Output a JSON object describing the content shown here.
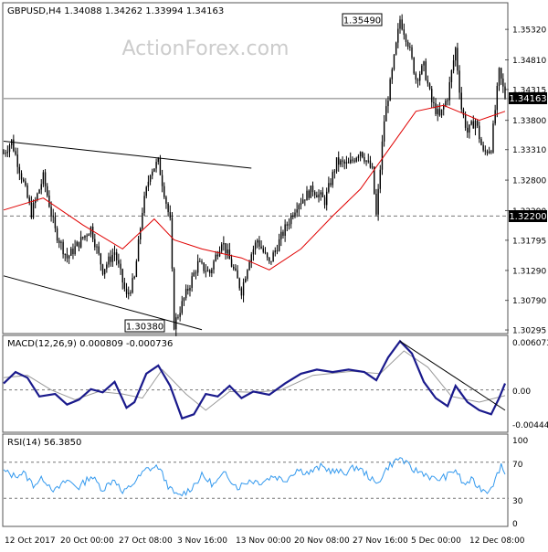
{
  "colors": {
    "candle": "#000000",
    "ma": "#e00000",
    "macd": "#1a1a8c",
    "signal": "#9a9a9a",
    "rsi": "#3399ee",
    "grid": "#777777",
    "watermark": "#cccccc"
  },
  "watermark": "ActionForex.com",
  "main": {
    "header": "GBPUSD,H4  1.34088  1.34262  1.33994  1.34163",
    "price_ticks": [
      "1.35320",
      "1.34810",
      "1.34315",
      "1.33800",
      "1.33310",
      "1.32800",
      "1.32290",
      "1.31795",
      "1.31290",
      "1.30790",
      "1.30295"
    ],
    "current_price_label": "1.34163",
    "current_price": 1.34163,
    "level_label": "1.32200",
    "level_price": 1.322,
    "high_label": "1.35490",
    "low_label": "1.30380",
    "ylim": [
      1.3025,
      1.3575
    ]
  },
  "macd": {
    "header": "MACD(12,26,9) 0.000809 -0.000736",
    "ticks": [
      "0.006073",
      "0.00",
      "-0.004441"
    ],
    "ylim": [
      -0.0051,
      0.0066
    ]
  },
  "rsi": {
    "header": "RSI(14) 56.3850",
    "ticks": [
      "100",
      "70",
      "30",
      "0"
    ],
    "levels": [
      70,
      30
    ],
    "ylim": [
      0,
      100
    ]
  },
  "x_labels": [
    "12 Oct 2017",
    "20 Oct 00:00",
    "27 Oct 08:00",
    "3 Nov 16:00",
    "13 Nov 00:00",
    "20 Nov 08:00",
    "27 Nov 16:00",
    "5 Dec 00:00",
    "12 Dec 08:00"
  ],
  "chart_data": {
    "type": "candlestick",
    "symbol": "GBPUSD",
    "timeframe": "H4",
    "ohlc_last": {
      "open": 1.34088,
      "high": 1.34262,
      "low": 1.33994,
      "close": 1.34163
    },
    "trend_path": [
      {
        "t": 0,
        "price": 1.3325
      },
      {
        "t": 4,
        "price": 1.3345
      },
      {
        "t": 10,
        "price": 1.3275
      },
      {
        "t": 14,
        "price": 1.3225
      },
      {
        "t": 20,
        "price": 1.3285
      },
      {
        "t": 26,
        "price": 1.3195
      },
      {
        "t": 32,
        "price": 1.315
      },
      {
        "t": 38,
        "price": 1.3175
      },
      {
        "t": 44,
        "price": 1.32
      },
      {
        "t": 50,
        "price": 1.313
      },
      {
        "t": 56,
        "price": 1.316
      },
      {
        "t": 62,
        "price": 1.3085
      },
      {
        "t": 66,
        "price": 1.3115
      },
      {
        "t": 70,
        "price": 1.323
      },
      {
        "t": 74,
        "price": 1.3295
      },
      {
        "t": 78,
        "price": 1.331
      },
      {
        "t": 84,
        "price": 1.321
      },
      {
        "t": 86,
        "price": 1.3038
      },
      {
        "t": 92,
        "price": 1.309
      },
      {
        "t": 98,
        "price": 1.314
      },
      {
        "t": 104,
        "price": 1.3125
      },
      {
        "t": 110,
        "price": 1.318
      },
      {
        "t": 116,
        "price": 1.313
      },
      {
        "t": 120,
        "price": 1.3095
      },
      {
        "t": 124,
        "price": 1.315
      },
      {
        "t": 128,
        "price": 1.318
      },
      {
        "t": 134,
        "price": 1.314
      },
      {
        "t": 140,
        "price": 1.3185
      },
      {
        "t": 148,
        "price": 1.324
      },
      {
        "t": 156,
        "price": 1.3265
      },
      {
        "t": 162,
        "price": 1.3245
      },
      {
        "t": 168,
        "price": 1.331
      },
      {
        "t": 174,
        "price": 1.3305
      },
      {
        "t": 180,
        "price": 1.333
      },
      {
        "t": 186,
        "price": 1.3295
      },
      {
        "t": 188,
        "price": 1.322
      },
      {
        "t": 192,
        "price": 1.338
      },
      {
        "t": 196,
        "price": 1.346
      },
      {
        "t": 200,
        "price": 1.3549
      },
      {
        "t": 204,
        "price": 1.351
      },
      {
        "t": 208,
        "price": 1.345
      },
      {
        "t": 212,
        "price": 1.347
      },
      {
        "t": 216,
        "price": 1.341
      },
      {
        "t": 220,
        "price": 1.3385
      },
      {
        "t": 224,
        "price": 1.342
      },
      {
        "t": 228,
        "price": 1.35
      },
      {
        "t": 231,
        "price": 1.34
      },
      {
        "t": 234,
        "price": 1.336
      },
      {
        "t": 238,
        "price": 1.338
      },
      {
        "t": 242,
        "price": 1.3325
      },
      {
        "t": 246,
        "price": 1.3335
      },
      {
        "t": 250,
        "price": 1.346
      },
      {
        "t": 253,
        "price": 1.342
      }
    ],
    "moving_average": [
      {
        "t": 0,
        "price": 1.323
      },
      {
        "t": 20,
        "price": 1.325
      },
      {
        "t": 40,
        "price": 1.3205
      },
      {
        "t": 60,
        "price": 1.3165
      },
      {
        "t": 76,
        "price": 1.3215
      },
      {
        "t": 86,
        "price": 1.318
      },
      {
        "t": 100,
        "price": 1.3165
      },
      {
        "t": 120,
        "price": 1.315
      },
      {
        "t": 134,
        "price": 1.313
      },
      {
        "t": 150,
        "price": 1.3165
      },
      {
        "t": 166,
        "price": 1.322
      },
      {
        "t": 180,
        "price": 1.3265
      },
      {
        "t": 194,
        "price": 1.333
      },
      {
        "t": 208,
        "price": 1.3395
      },
      {
        "t": 222,
        "price": 1.3405
      },
      {
        "t": 240,
        "price": 1.338
      },
      {
        "t": 253,
        "price": 1.3395
      }
    ],
    "upper_channel": [
      {
        "t": 0,
        "price": 1.3345
      },
      {
        "t": 125,
        "price": 1.33
      }
    ],
    "lower_channel": [
      {
        "t": 0,
        "price": 1.312
      },
      {
        "t": 100,
        "price": 1.303
      }
    ],
    "macd_main": [
      {
        "t": 0,
        "v": 0.0008
      },
      {
        "t": 6,
        "v": 0.0022
      },
      {
        "t": 12,
        "v": 0.0015
      },
      {
        "t": 18,
        "v": -0.0008
      },
      {
        "t": 26,
        "v": -0.0005
      },
      {
        "t": 32,
        "v": -0.0018
      },
      {
        "t": 38,
        "v": -0.0012
      },
      {
        "t": 44,
        "v": 0.0001
      },
      {
        "t": 50,
        "v": -0.0003
      },
      {
        "t": 56,
        "v": 0.001
      },
      {
        "t": 62,
        "v": -0.0022
      },
      {
        "t": 66,
        "v": -0.0015
      },
      {
        "t": 72,
        "v": 0.002
      },
      {
        "t": 78,
        "v": 0.003
      },
      {
        "t": 84,
        "v": 0.0005
      },
      {
        "t": 90,
        "v": -0.0035
      },
      {
        "t": 96,
        "v": -0.003
      },
      {
        "t": 102,
        "v": -0.0005
      },
      {
        "t": 108,
        "v": -0.0008
      },
      {
        "t": 114,
        "v": 0.0005
      },
      {
        "t": 120,
        "v": -0.001
      },
      {
        "t": 126,
        "v": -0.0002
      },
      {
        "t": 134,
        "v": -0.0006
      },
      {
        "t": 142,
        "v": 0.0008
      },
      {
        "t": 150,
        "v": 0.002
      },
      {
        "t": 158,
        "v": 0.0025
      },
      {
        "t": 166,
        "v": 0.0022
      },
      {
        "t": 174,
        "v": 0.0025
      },
      {
        "t": 182,
        "v": 0.0022
      },
      {
        "t": 188,
        "v": 0.0012
      },
      {
        "t": 194,
        "v": 0.004
      },
      {
        "t": 200,
        "v": 0.006
      },
      {
        "t": 206,
        "v": 0.0045
      },
      {
        "t": 212,
        "v": 0.001
      },
      {
        "t": 218,
        "v": -0.001
      },
      {
        "t": 224,
        "v": -0.002
      },
      {
        "t": 228,
        "v": 0.0005
      },
      {
        "t": 234,
        "v": -0.0015
      },
      {
        "t": 240,
        "v": -0.0025
      },
      {
        "t": 246,
        "v": -0.003
      },
      {
        "t": 250,
        "v": -0.001
      },
      {
        "t": 253,
        "v": 0.0008
      }
    ],
    "macd_signal": [
      {
        "t": 0,
        "v": 0.0015
      },
      {
        "t": 12,
        "v": 0.0018
      },
      {
        "t": 24,
        "v": 0.0
      },
      {
        "t": 36,
        "v": -0.0012
      },
      {
        "t": 48,
        "v": -0.0002
      },
      {
        "t": 60,
        "v": -0.0005
      },
      {
        "t": 70,
        "v": -0.001
      },
      {
        "t": 80,
        "v": 0.0025
      },
      {
        "t": 92,
        "v": -0.0005
      },
      {
        "t": 102,
        "v": -0.0025
      },
      {
        "t": 114,
        "v": -0.0002
      },
      {
        "t": 126,
        "v": -0.0003
      },
      {
        "t": 140,
        "v": 0.0
      },
      {
        "t": 156,
        "v": 0.0018
      },
      {
        "t": 176,
        "v": 0.0023
      },
      {
        "t": 190,
        "v": 0.002
      },
      {
        "t": 202,
        "v": 0.0048
      },
      {
        "t": 214,
        "v": 0.0028
      },
      {
        "t": 226,
        "v": -0.0008
      },
      {
        "t": 240,
        "v": -0.0015
      },
      {
        "t": 253,
        "v": -0.0007
      }
    ],
    "macd_trendline": [
      {
        "t": 200,
        "v": 0.006
      },
      {
        "t": 253,
        "v": -0.0025
      }
    ],
    "rsi_values": [
      {
        "t": 0,
        "v": 60
      },
      {
        "t": 5,
        "v": 55
      },
      {
        "t": 10,
        "v": 58
      },
      {
        "t": 15,
        "v": 45
      },
      {
        "t": 20,
        "v": 52
      },
      {
        "t": 26,
        "v": 38
      },
      {
        "t": 32,
        "v": 50
      },
      {
        "t": 38,
        "v": 42
      },
      {
        "t": 44,
        "v": 55
      },
      {
        "t": 50,
        "v": 40
      },
      {
        "t": 56,
        "v": 52
      },
      {
        "t": 60,
        "v": 35
      },
      {
        "t": 66,
        "v": 48
      },
      {
        "t": 72,
        "v": 62
      },
      {
        "t": 78,
        "v": 65
      },
      {
        "t": 84,
        "v": 40
      },
      {
        "t": 88,
        "v": 32
      },
      {
        "t": 94,
        "v": 40
      },
      {
        "t": 100,
        "v": 55
      },
      {
        "t": 106,
        "v": 45
      },
      {
        "t": 112,
        "v": 58
      },
      {
        "t": 118,
        "v": 42
      },
      {
        "t": 124,
        "v": 50
      },
      {
        "t": 130,
        "v": 48
      },
      {
        "t": 136,
        "v": 55
      },
      {
        "t": 142,
        "v": 50
      },
      {
        "t": 148,
        "v": 62
      },
      {
        "t": 154,
        "v": 58
      },
      {
        "t": 160,
        "v": 65
      },
      {
        "t": 166,
        "v": 60
      },
      {
        "t": 172,
        "v": 58
      },
      {
        "t": 178,
        "v": 65
      },
      {
        "t": 184,
        "v": 55
      },
      {
        "t": 188,
        "v": 45
      },
      {
        "t": 194,
        "v": 65
      },
      {
        "t": 200,
        "v": 75
      },
      {
        "t": 206,
        "v": 62
      },
      {
        "t": 212,
        "v": 58
      },
      {
        "t": 218,
        "v": 50
      },
      {
        "t": 224,
        "v": 55
      },
      {
        "t": 228,
        "v": 62
      },
      {
        "t": 232,
        "v": 45
      },
      {
        "t": 236,
        "v": 50
      },
      {
        "t": 240,
        "v": 42
      },
      {
        "t": 244,
        "v": 38
      },
      {
        "t": 248,
        "v": 50
      },
      {
        "t": 251,
        "v": 68
      },
      {
        "t": 253,
        "v": 56
      }
    ],
    "bar_count": 254
  }
}
